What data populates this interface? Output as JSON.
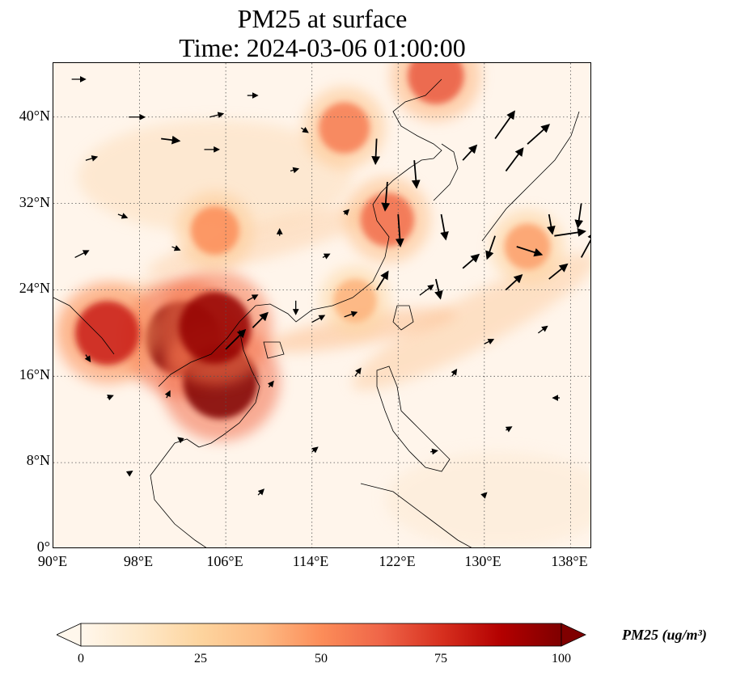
{
  "title": {
    "line1": "PM25 at surface",
    "line2": "Time: 2024-03-06 01:00:00"
  },
  "map": {
    "type": "filled-contour-map-with-wind-vectors",
    "extent": {
      "lon": [
        90,
        140
      ],
      "lat": [
        0,
        45
      ]
    },
    "gridlines": "dotted",
    "coastlines": true,
    "lat_ticks": [
      "0°",
      "8°N",
      "16°N",
      "24°N",
      "32°N",
      "40°N"
    ],
    "lon_ticks": [
      "90°E",
      "98°E",
      "106°E",
      "114°E",
      "122°E",
      "130°E",
      "138°E"
    ],
    "background_color": "#fff5eb",
    "hotspots": [
      {
        "region": "Northern Thailand / Laos / Myanmar",
        "lon": 102,
        "lat": 19.5,
        "pm25": 100
      },
      {
        "region": "Cambodia",
        "lon": 105.5,
        "lat": 15.5,
        "pm25": 100
      },
      {
        "region": "Vietnam north",
        "lon": 105,
        "lat": 20.5,
        "pm25": 95
      },
      {
        "region": "Myanmar west",
        "lon": 95,
        "lat": 20,
        "pm25": 80
      },
      {
        "region": "North China Plain",
        "lon": 117,
        "lat": 39,
        "pm25": 55
      },
      {
        "region": "Sichuan Basin",
        "lon": 105,
        "lat": 29.5,
        "pm25": 50
      },
      {
        "region": "Shanghai / Yangtze",
        "lon": 121,
        "lat": 30.5,
        "pm25": 60
      },
      {
        "region": "Northeast China",
        "lon": 125.5,
        "lat": 43.8,
        "pm25": 65
      },
      {
        "region": "Pacific plume",
        "lon": 134,
        "lat": 28,
        "pm25": 45
      },
      {
        "region": "South China Sea plume",
        "lon": 118,
        "lat": 23,
        "pm25": 40
      }
    ],
    "wind_vectors": [
      {
        "lon": 91.7,
        "lat": 43.5,
        "u": 1.2,
        "v": 0
      },
      {
        "lon": 97,
        "lat": 40,
        "u": 1.4,
        "v": 0
      },
      {
        "lon": 100,
        "lat": 38,
        "u": 1.6,
        "v": -0.2
      },
      {
        "lon": 93,
        "lat": 36,
        "u": 1,
        "v": 0.3
      },
      {
        "lon": 104,
        "lat": 37,
        "u": 1.3,
        "v": 0
      },
      {
        "lon": 108,
        "lat": 42,
        "u": 0.9,
        "v": 0
      },
      {
        "lon": 112,
        "lat": 35,
        "u": 0.7,
        "v": 0.2
      },
      {
        "lon": 96,
        "lat": 31,
        "u": 0.8,
        "v": -0.3
      },
      {
        "lon": 92,
        "lat": 27,
        "u": 1.2,
        "v": 0.6
      },
      {
        "lon": 101,
        "lat": 28,
        "u": 0.7,
        "v": -0.3
      },
      {
        "lon": 112.5,
        "lat": 23,
        "u": 0,
        "v": -1.2
      },
      {
        "lon": 108,
        "lat": 23,
        "u": 0.9,
        "v": 0.5
      },
      {
        "lon": 106,
        "lat": 18.5,
        "u": 1.7,
        "v": 1.7
      },
      {
        "lon": 108.5,
        "lat": 20.5,
        "u": 1.3,
        "v": 1.3
      },
      {
        "lon": 114,
        "lat": 21,
        "u": 1.1,
        "v": 0.6
      },
      {
        "lon": 117,
        "lat": 21.5,
        "u": 1.1,
        "v": 0.4
      },
      {
        "lon": 120,
        "lat": 38,
        "u": -0.1,
        "v": -2.2
      },
      {
        "lon": 121,
        "lat": 34,
        "u": -0.2,
        "v": -2.5
      },
      {
        "lon": 122,
        "lat": 31,
        "u": 0.2,
        "v": -2.8
      },
      {
        "lon": 123.5,
        "lat": 36,
        "u": 0.2,
        "v": -2.4
      },
      {
        "lon": 126,
        "lat": 31,
        "u": 0.4,
        "v": -2.2
      },
      {
        "lon": 125.5,
        "lat": 25,
        "u": 0.4,
        "v": -1.7
      },
      {
        "lon": 128,
        "lat": 36,
        "u": 1.2,
        "v": 1.3
      },
      {
        "lon": 131,
        "lat": 38,
        "u": 1.7,
        "v": 2.4
      },
      {
        "lon": 132,
        "lat": 35,
        "u": 1.5,
        "v": 2
      },
      {
        "lon": 134,
        "lat": 37.5,
        "u": 1.9,
        "v": 1.7
      },
      {
        "lon": 136,
        "lat": 31,
        "u": 0.3,
        "v": -1.7
      },
      {
        "lon": 139,
        "lat": 32,
        "u": -0.3,
        "v": -2.1
      },
      {
        "lon": 136.5,
        "lat": 29,
        "u": 2.7,
        "v": 0.4
      },
      {
        "lon": 133,
        "lat": 28,
        "u": 2.2,
        "v": -0.7
      },
      {
        "lon": 131,
        "lat": 29,
        "u": -0.7,
        "v": -2
      },
      {
        "lon": 139,
        "lat": 27,
        "u": 1.2,
        "v": 2.2
      },
      {
        "lon": 136,
        "lat": 25,
        "u": 1.6,
        "v": 1.3
      },
      {
        "lon": 132,
        "lat": 24,
        "u": 1.4,
        "v": 1.3
      },
      {
        "lon": 128,
        "lat": 26,
        "u": 1.4,
        "v": 1.2
      },
      {
        "lon": 124,
        "lat": 23.5,
        "u": 1.2,
        "v": 0.9
      },
      {
        "lon": 120,
        "lat": 24,
        "u": 1,
        "v": 1.6
      },
      {
        "lon": 118,
        "lat": 16,
        "u": 0.5,
        "v": 0.7
      },
      {
        "lon": 130,
        "lat": 19,
        "u": 0.8,
        "v": 0.4
      },
      {
        "lon": 135,
        "lat": 20,
        "u": 0.8,
        "v": 0.6
      },
      {
        "lon": 127,
        "lat": 16,
        "u": 0.4,
        "v": 0.6
      },
      {
        "lon": 110,
        "lat": 15,
        "u": 0.4,
        "v": 0.5
      },
      {
        "lon": 114,
        "lat": 9,
        "u": 0.5,
        "v": 0.4
      },
      {
        "lon": 102,
        "lat": 10,
        "u": -0.4,
        "v": 0.3
      },
      {
        "lon": 95,
        "lat": 14,
        "u": 0.5,
        "v": 0.2
      },
      {
        "lon": 93,
        "lat": 18,
        "u": 0.4,
        "v": -0.6
      },
      {
        "lon": 100.5,
        "lat": 14,
        "u": 0.3,
        "v": 0.6
      },
      {
        "lon": 97,
        "lat": 7,
        "u": 0.3,
        "v": 0.2
      },
      {
        "lon": 125,
        "lat": 9,
        "u": 0.6,
        "v": 0.1
      },
      {
        "lon": 132,
        "lat": 11,
        "u": 0.5,
        "v": 0.3
      },
      {
        "lon": 137,
        "lat": 14,
        "u": -0.6,
        "v": 0
      },
      {
        "lon": 109,
        "lat": 5,
        "u": 0.5,
        "v": 0.5
      },
      {
        "lon": 130,
        "lat": 5,
        "u": 0.2,
        "v": 0.2
      },
      {
        "lon": 111,
        "lat": 29,
        "u": 0,
        "v": 0.6
      },
      {
        "lon": 115,
        "lat": 27,
        "u": 0.6,
        "v": 0.3
      },
      {
        "lon": 117,
        "lat": 31,
        "u": 0.4,
        "v": 0.4
      },
      {
        "lon": 113,
        "lat": 39,
        "u": 0.6,
        "v": -0.4
      },
      {
        "lon": 104.5,
        "lat": 40,
        "u": 1.2,
        "v": 0.3
      }
    ]
  },
  "colorbar": {
    "label": "PM25 (ug/m³)",
    "min": 0,
    "max": 100,
    "ticks": [
      "0",
      "25",
      "50",
      "75",
      "100"
    ],
    "colormap": "OrRd",
    "extend": "both",
    "stops": [
      "#fff7ec",
      "#fee8c8",
      "#fdd49e",
      "#fdbb84",
      "#fc8d59",
      "#ef6548",
      "#d7301f",
      "#b30000",
      "#7f0000"
    ]
  }
}
